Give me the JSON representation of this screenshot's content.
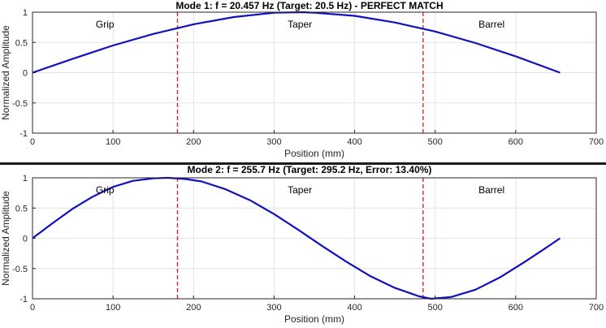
{
  "chart_data": [
    {
      "type": "line",
      "title": "Mode 1: f = 20.457 Hz (Target: 20.5 Hz) - PERFECT MATCH",
      "xlabel": "Position (mm)",
      "ylabel": "Normalized Amplitude",
      "xlim": [
        0,
        700
      ],
      "ylim": [
        -1,
        1
      ],
      "xticks": [
        "0",
        "100",
        "200",
        "300",
        "400",
        "500",
        "600",
        "700"
      ],
      "yticks": [
        "-1",
        "-0.5",
        "0",
        "0.5",
        "1"
      ],
      "grid": true,
      "vlines": [
        180,
        485
      ],
      "annotations": [
        {
          "text": "Grip",
          "x": 90,
          "y": 0.8
        },
        {
          "text": "Taper",
          "x": 332,
          "y": 0.8
        },
        {
          "text": "Barrel",
          "x": 570,
          "y": 0.8
        }
      ],
      "series": [
        {
          "color": "#1010c0",
          "x": [
            0,
            50,
            100,
            150,
            200,
            250,
            300,
            335,
            350,
            400,
            450,
            500,
            550,
            600,
            655
          ],
          "y": [
            0,
            0.23,
            0.45,
            0.64,
            0.8,
            0.92,
            0.99,
            1.0,
            0.99,
            0.94,
            0.83,
            0.68,
            0.49,
            0.27,
            0.0
          ]
        }
      ]
    },
    {
      "type": "line",
      "title": "Mode 2: f = 255.7 Hz (Target: 295.2 Hz, Error: 13.40%)",
      "xlabel": "Position (mm)",
      "ylabel": "Normalized Amplitude",
      "xlim": [
        0,
        700
      ],
      "ylim": [
        -1,
        1
      ],
      "xticks": [
        "0",
        "100",
        "200",
        "300",
        "400",
        "500",
        "600",
        "700"
      ],
      "yticks": [
        "-1",
        "-0.5",
        "0",
        "0.5",
        "1"
      ],
      "grid": true,
      "vlines": [
        180,
        485
      ],
      "annotations": [
        {
          "text": "Grip",
          "x": 90,
          "y": 0.8
        },
        {
          "text": "Taper",
          "x": 332,
          "y": 0.8
        },
        {
          "text": "Barrel",
          "x": 570,
          "y": 0.8
        }
      ],
      "series": [
        {
          "color": "#1010c0",
          "x": [
            0,
            25,
            50,
            75,
            100,
            125,
            150,
            168,
            190,
            210,
            240,
            270,
            300,
            330,
            360,
            390,
            420,
            450,
            480,
            495,
            520,
            550,
            580,
            610,
            635,
            655
          ],
          "y": [
            0,
            0.25,
            0.49,
            0.69,
            0.85,
            0.95,
            0.99,
            1.0,
            0.98,
            0.94,
            0.81,
            0.63,
            0.4,
            0.14,
            -0.13,
            -0.39,
            -0.63,
            -0.82,
            -0.96,
            -1.0,
            -0.97,
            -0.85,
            -0.65,
            -0.4,
            -0.18,
            0.0
          ]
        }
      ]
    }
  ]
}
